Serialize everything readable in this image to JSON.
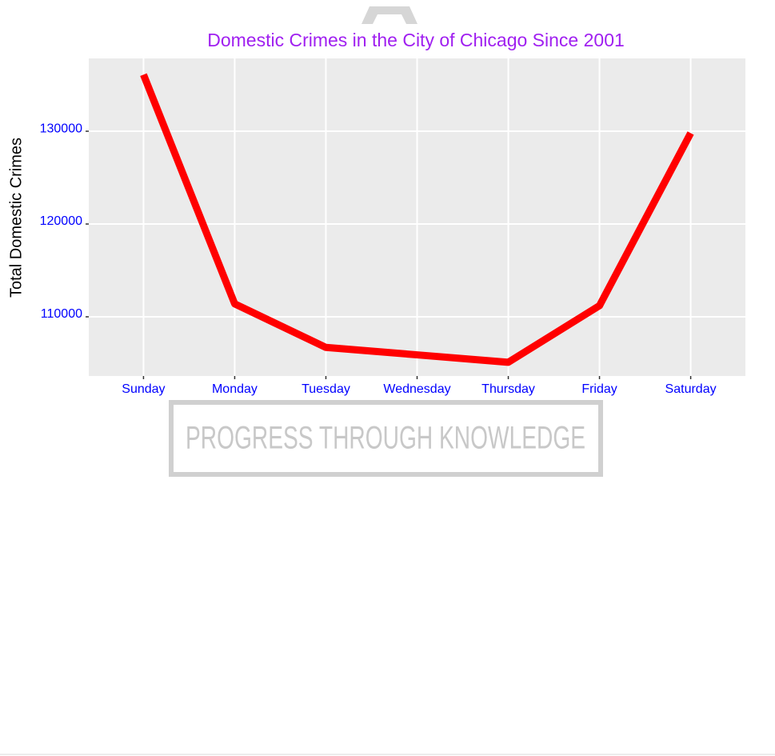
{
  "chart_data": {
    "type": "line",
    "title": "Domestic Crimes in the City of Chicago Since 2001",
    "y_label": "Total Domestic Crimes",
    "categories": [
      "Sunday",
      "Monday",
      "Tuesday",
      "Wednesday",
      "Thursday",
      "Friday",
      "Saturday"
    ],
    "series": [
      {
        "name": "Total Domestic Crimes",
        "color": "#ff0000",
        "values": [
          136100,
          111400,
          106700,
          105900,
          105100,
          111200,
          129800
        ]
      }
    ],
    "ylim": [
      103620,
      137850
    ],
    "yticks": [
      110000,
      120000,
      130000
    ],
    "grid": true,
    "watermark": "PROGRESS THROUGH KNOWLEDGE"
  }
}
